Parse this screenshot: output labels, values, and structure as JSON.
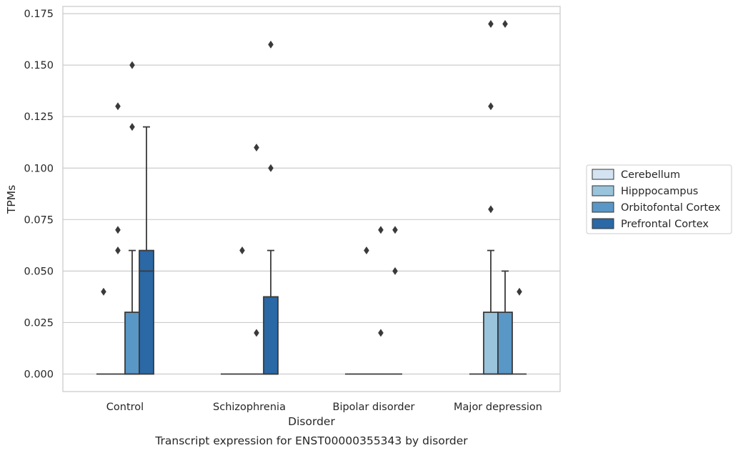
{
  "chart_data": {
    "type": "box",
    "title": "",
    "caption": "Transcript expression for ENST00000355343 by disorder",
    "xlabel": "Disorder",
    "ylabel": "TPMs",
    "ylim": [
      -0.0085,
      0.1785
    ],
    "yticks": [
      "0.000",
      "0.025",
      "0.050",
      "0.075",
      "0.100",
      "0.125",
      "0.150",
      "0.175"
    ],
    "ytick_values": [
      0,
      0.025,
      0.05,
      0.075,
      0.1,
      0.125,
      0.15,
      0.175
    ],
    "grid": true,
    "legend_position": "right",
    "categories": [
      "Control",
      "Schizophrenia",
      "Bipolar disorder",
      "Major depression"
    ],
    "series": [
      {
        "name": "Cerebellum",
        "color": "#d3e3f1",
        "boxes": [
          {
            "q1": 0,
            "median": 0,
            "q3": 0,
            "whisker_low": 0,
            "whisker_high": 0,
            "outliers": [
              0.04
            ]
          },
          {
            "q1": 0,
            "median": 0,
            "q3": 0,
            "whisker_low": 0,
            "whisker_high": 0,
            "outliers": []
          },
          {
            "q1": 0,
            "median": 0,
            "q3": 0,
            "whisker_low": 0,
            "whisker_high": 0,
            "outliers": []
          },
          {
            "q1": 0,
            "median": 0,
            "q3": 0,
            "whisker_low": 0,
            "whisker_high": 0,
            "outliers": []
          }
        ]
      },
      {
        "name": "Hipppocampus",
        "color": "#9ac3dc",
        "boxes": [
          {
            "q1": 0,
            "median": 0,
            "q3": 0,
            "whisker_low": 0,
            "whisker_high": 0,
            "outliers": [
              0.06,
              0.07,
              0.13
            ]
          },
          {
            "q1": 0,
            "median": 0,
            "q3": 0,
            "whisker_low": 0,
            "whisker_high": 0,
            "outliers": [
              0.06
            ]
          },
          {
            "q1": 0,
            "median": 0,
            "q3": 0,
            "whisker_low": 0,
            "whisker_high": 0,
            "outliers": [
              0.06
            ]
          },
          {
            "q1": 0,
            "median": 0,
            "q3": 0.03,
            "whisker_low": 0,
            "whisker_high": 0.06,
            "outliers": [
              0.08,
              0.13,
              0.17
            ]
          }
        ]
      },
      {
        "name": "Orbitofontal Cortex",
        "color": "#5997c6",
        "boxes": [
          {
            "q1": 0,
            "median": 0,
            "q3": 0.03,
            "whisker_low": 0,
            "whisker_high": 0.06,
            "outliers": [
              0.12,
              0.15
            ]
          },
          {
            "q1": 0,
            "median": 0,
            "q3": 0,
            "whisker_low": 0,
            "whisker_high": 0,
            "outliers": [
              0.02,
              0.11
            ]
          },
          {
            "q1": 0,
            "median": 0,
            "q3": 0,
            "whisker_low": 0,
            "whisker_high": 0,
            "outliers": [
              0.02,
              0.07
            ]
          },
          {
            "q1": 0,
            "median": 0,
            "q3": 0.03,
            "whisker_low": 0,
            "whisker_high": 0.05,
            "outliers": [
              0.17
            ]
          }
        ]
      },
      {
        "name": "Prefrontal Cortex",
        "color": "#2a68a6",
        "boxes": [
          {
            "q1": 0,
            "median": 0.05,
            "q3": 0.06,
            "whisker_low": 0,
            "whisker_high": 0.12,
            "outliers": []
          },
          {
            "q1": 0,
            "median": 0,
            "q3": 0.0375,
            "whisker_low": 0,
            "whisker_high": 0.06,
            "outliers": [
              0.1,
              0.16
            ]
          },
          {
            "q1": 0,
            "median": 0,
            "q3": 0,
            "whisker_low": 0,
            "whisker_high": 0,
            "outliers": [
              0.05,
              0.07
            ]
          },
          {
            "q1": 0,
            "median": 0,
            "q3": 0,
            "whisker_low": 0,
            "whisker_high": 0,
            "outliers": [
              0.04
            ]
          }
        ]
      }
    ]
  }
}
